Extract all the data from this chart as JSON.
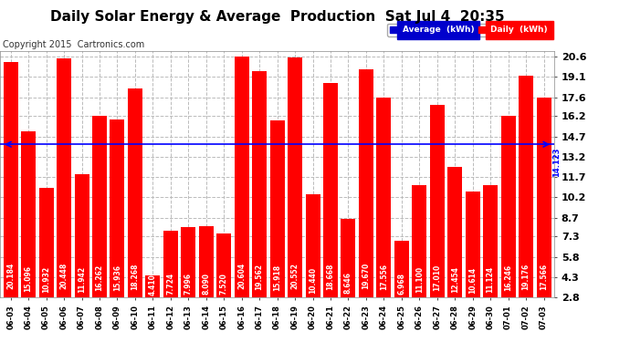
{
  "title": "Daily Solar Energy & Average  Production  Sat Jul 4  20:35",
  "copyright": "Copyright 2015  Cartronics.com",
  "categories": [
    "06-03",
    "06-04",
    "06-05",
    "06-06",
    "06-07",
    "06-08",
    "06-09",
    "06-10",
    "06-11",
    "06-12",
    "06-13",
    "06-14",
    "06-15",
    "06-16",
    "06-17",
    "06-18",
    "06-19",
    "06-20",
    "06-21",
    "06-22",
    "06-23",
    "06-24",
    "06-25",
    "06-26",
    "06-27",
    "06-28",
    "06-29",
    "06-30",
    "07-01",
    "07-02",
    "07-03"
  ],
  "values": [
    20.184,
    15.096,
    10.932,
    20.448,
    11.942,
    16.262,
    15.936,
    18.268,
    4.41,
    7.724,
    7.996,
    8.09,
    7.52,
    20.604,
    19.562,
    15.918,
    20.552,
    10.44,
    18.668,
    8.646,
    19.67,
    17.556,
    6.968,
    11.1,
    17.01,
    12.454,
    10.614,
    11.124,
    16.246,
    19.176,
    17.566
  ],
  "average": 14.123,
  "bar_color": "#ff0000",
  "avg_line_color": "#0000ff",
  "bar_label_color": "#ffffff",
  "background_color": "#ffffff",
  "plot_bg_color": "#ffffff",
  "grid_color": "#bbbbbb",
  "yticks": [
    2.8,
    4.3,
    5.8,
    7.3,
    8.7,
    10.2,
    11.7,
    13.2,
    14.7,
    16.2,
    17.6,
    19.1,
    20.6
  ],
  "ymin": 2.8,
  "ymax": 21.0,
  "legend_avg_bg": "#0000cc",
  "legend_daily_bg": "#ff0000",
  "title_fontsize": 11,
  "bar_label_fontsize": 5.5,
  "copyright_fontsize": 7,
  "tick_fontsize": 8,
  "xtick_fontsize": 6
}
